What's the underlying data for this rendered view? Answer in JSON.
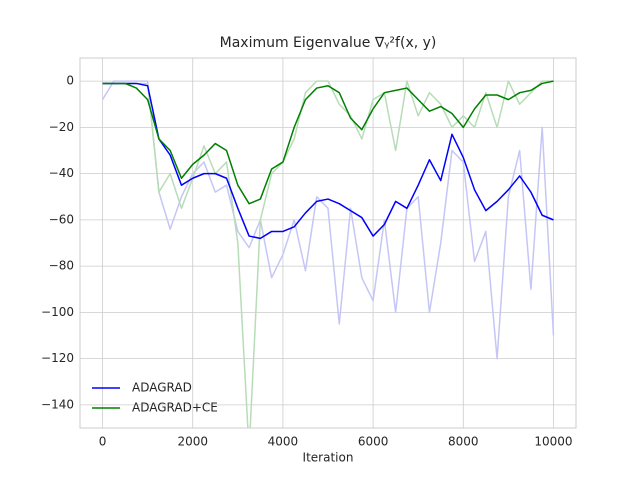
{
  "chart_data": {
    "type": "line",
    "title": "Maximum Eigenvalue ∇ᵧ²f(x, y)",
    "x_label": "Iteration",
    "x": [
      0,
      250,
      500,
      750,
      1000,
      1250,
      1500,
      1750,
      2000,
      2250,
      2500,
      2750,
      3000,
      3250,
      3500,
      3750,
      4000,
      4250,
      4500,
      4750,
      5000,
      5250,
      5500,
      5750,
      6000,
      6250,
      6500,
      6750,
      7000,
      7250,
      7500,
      7750,
      8000,
      8250,
      8500,
      8750,
      9000,
      9250,
      9500,
      9750,
      10000
    ],
    "series": [
      {
        "color": "#c6c6f6",
        "values": [
          -8,
          0,
          0,
          0,
          0,
          -48,
          -64,
          -50,
          -40,
          -35,
          -48,
          -45,
          -65,
          -72,
          -60,
          -85,
          -75,
          -60,
          -82,
          -50,
          -55,
          -105,
          -55,
          -85,
          -95,
          -60,
          -100,
          -55,
          -50,
          -100,
          -70,
          -30,
          -35,
          -78,
          -65,
          -120,
          -50,
          -30,
          -90,
          -20,
          -110
        ]
      },
      {
        "color": "#b8dcb8",
        "values": [
          -1,
          -1,
          -1,
          -1,
          -1,
          -48,
          -40,
          -55,
          -42,
          -28,
          -40,
          -35,
          -70,
          -160,
          -60,
          -40,
          -35,
          -25,
          -5,
          0,
          0,
          -10,
          -15,
          -25,
          -8,
          -5,
          -30,
          0,
          -15,
          -5,
          -10,
          -20,
          -15,
          -20,
          -5,
          -20,
          0,
          -10,
          -5,
          0,
          0
        ]
      },
      {
        "name": "ADAGRAD",
        "color": "#0000ff",
        "values": [
          -1,
          -1,
          -1,
          -1,
          -2,
          -25,
          -32,
          -45,
          -42,
          -40,
          -40,
          -42,
          -55,
          -67,
          -68,
          -65,
          -65,
          -63,
          -57,
          -52,
          -51,
          -53,
          -56,
          -59,
          -67,
          -62,
          -52,
          -55,
          -45,
          -34,
          -43,
          -23,
          -33,
          -47,
          -56,
          -52,
          -47,
          -41,
          -48,
          -58,
          -60
        ]
      },
      {
        "name": "ADAGRAD+CE",
        "color": "#008000",
        "values": [
          -1,
          -1,
          -1,
          -3,
          -8,
          -25,
          -30,
          -42,
          -36,
          -32,
          -27,
          -30,
          -45,
          -53,
          -51,
          -38,
          -35,
          -20,
          -8,
          -3,
          -2,
          -5,
          -16,
          -21,
          -12,
          -5,
          -4,
          -3,
          -8,
          -13,
          -11,
          -14,
          -20,
          -12,
          -6,
          -6,
          -8,
          -5,
          -4,
          -1,
          0
        ]
      }
    ],
    "xlim": [
      -500,
      10500
    ],
    "ylim": [
      -150,
      10
    ],
    "xticks": [
      0,
      2000,
      4000,
      6000,
      8000,
      10000
    ],
    "yticks": [
      {
        "value": -140,
        "label": "−140"
      },
      {
        "value": -120,
        "label": "−120"
      },
      {
        "value": -100,
        "label": "−100"
      },
      {
        "value": -80,
        "label": "−80"
      },
      {
        "value": -60,
        "label": "−60"
      },
      {
        "value": -40,
        "label": "−40"
      },
      {
        "value": -20,
        "label": "−20"
      },
      0
    ],
    "grid": true,
    "legend": "lower left"
  }
}
